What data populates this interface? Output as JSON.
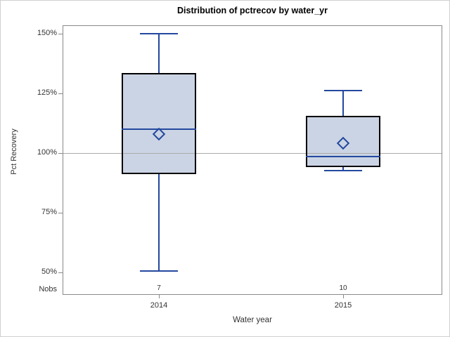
{
  "chart_data": {
    "type": "box",
    "title": "Distribution of pctrecov by water_yr",
    "xlabel": "Water year",
    "ylabel": "Pct Recovery",
    "nobs_label": "Nobs",
    "categories": [
      "2014",
      "2015"
    ],
    "series": [
      {
        "category": "2014",
        "nobs": "7",
        "min": 50.5,
        "q1": 91,
        "median": 110,
        "q3": 133.5,
        "max": 150,
        "mean": 108
      },
      {
        "category": "2015",
        "nobs": "10",
        "min": 92.5,
        "q1": 94,
        "median": 98.5,
        "q3": 115.5,
        "max": 126,
        "mean": 104
      }
    ],
    "yticks": [
      {
        "value": 150,
        "label": "150%"
      },
      {
        "value": 125,
        "label": "125%"
      },
      {
        "value": 100,
        "label": "100%"
      },
      {
        "value": 75,
        "label": "75%"
      },
      {
        "value": 50,
        "label": "50%"
      }
    ],
    "reference_line": 100,
    "ylim": [
      40.5,
      153.5
    ],
    "grid": false,
    "legend": null,
    "colors": {
      "box_fill": "#cbd4e4",
      "box_border": "#000000",
      "line_blue": "#23489e",
      "reference_gray": "#aaaaaa",
      "frame_gray": "#898989",
      "text": "#333333",
      "title_text": "#000000"
    }
  }
}
